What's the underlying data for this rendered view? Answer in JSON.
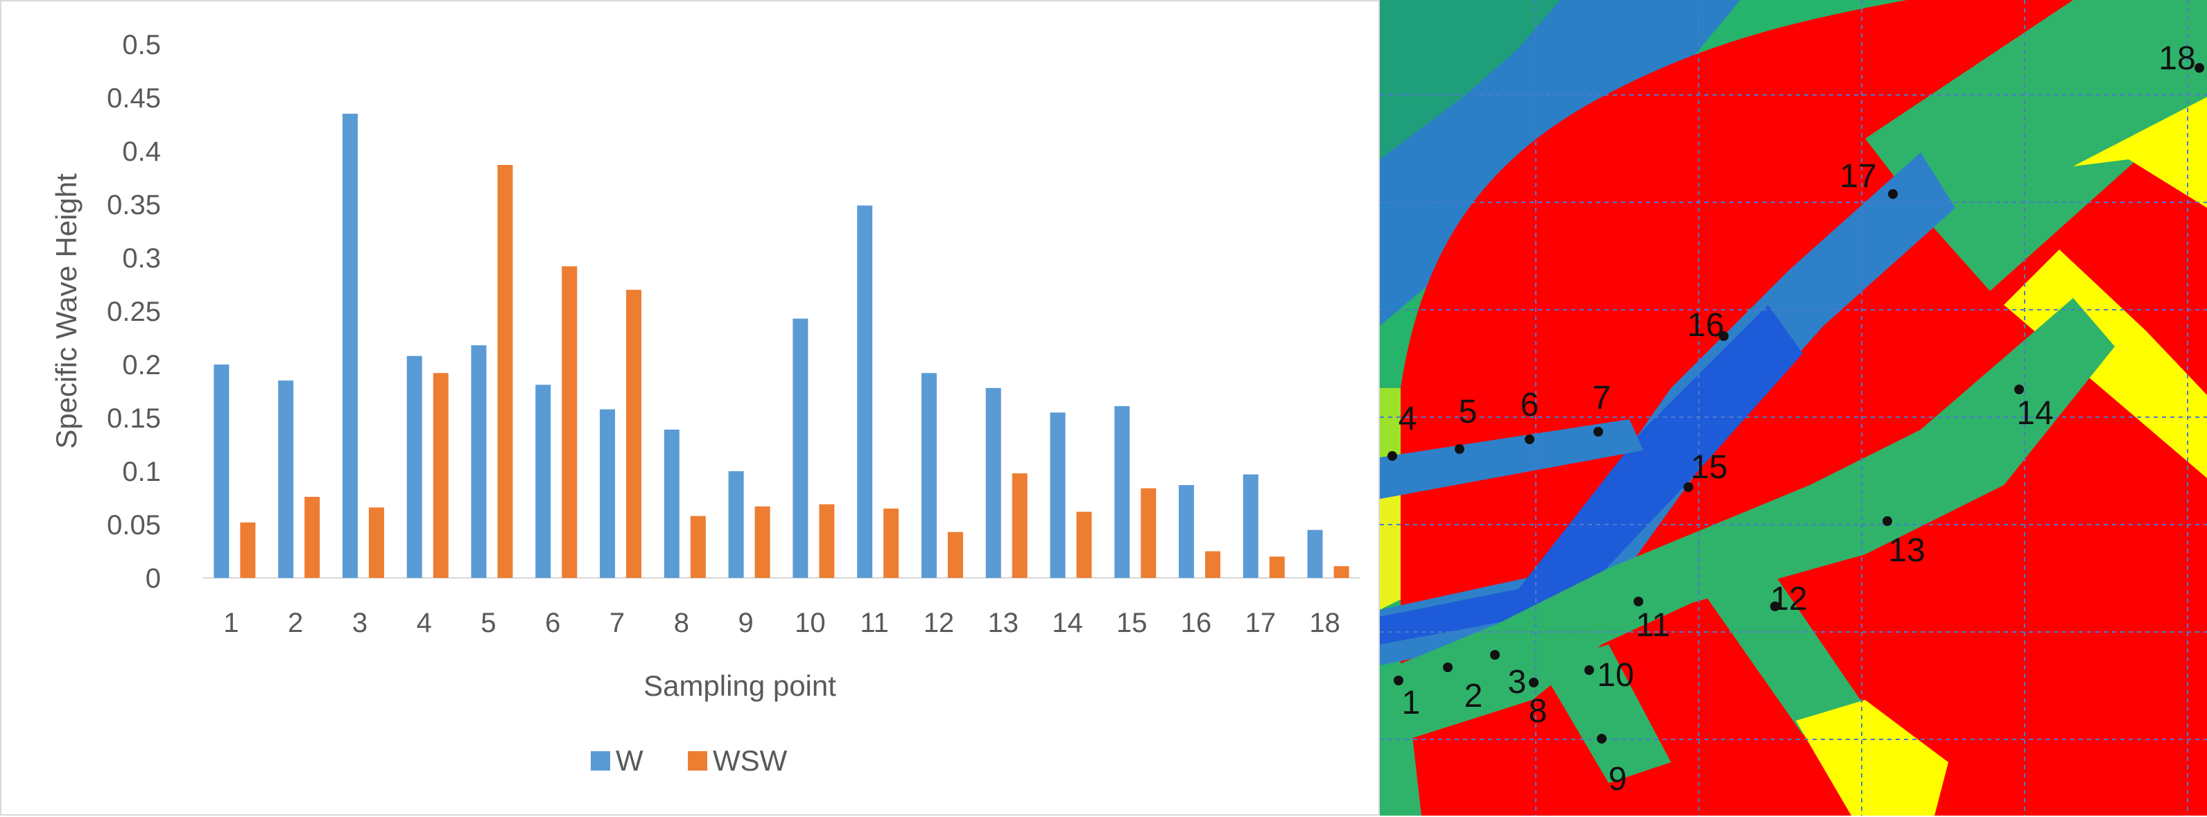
{
  "chart_data": {
    "type": "bar",
    "title": "",
    "xlabel": "Sampling point",
    "ylabel": "Specific Wave Height",
    "ylim": [
      0,
      0.5
    ],
    "yticks": [
      "0",
      "0.05",
      "0.1",
      "0.15",
      "0.2",
      "0.25",
      "0.3",
      "0.35",
      "0.4",
      "0.45",
      "0.5"
    ],
    "categories": [
      "1",
      "2",
      "3",
      "4",
      "5",
      "6",
      "7",
      "8",
      "9",
      "10",
      "11",
      "12",
      "13",
      "14",
      "15",
      "16",
      "17",
      "18"
    ],
    "series": [
      {
        "name": "W",
        "color": "#5b9bd5",
        "values": [
          0.2,
          0.185,
          0.435,
          0.208,
          0.218,
          0.181,
          0.158,
          0.139,
          0.1,
          0.243,
          0.349,
          0.192,
          0.178,
          0.155,
          0.161,
          0.087,
          0.097,
          0.045
        ]
      },
      {
        "name": "WSW",
        "color": "#ed7d31",
        "values": [
          0.052,
          0.076,
          0.066,
          0.192,
          0.387,
          0.292,
          0.27,
          0.058,
          0.067,
          0.069,
          0.065,
          0.043,
          0.098,
          0.062,
          0.084,
          0.025,
          0.02,
          0.011
        ]
      }
    ],
    "legend_position": "bottom-center",
    "grid": false
  },
  "map": {
    "colors": {
      "red": "#ff0000",
      "green": "#2fb36b",
      "blue": "#1e5bd8",
      "light_blue": "#2e80c9",
      "yellow": "#ffff00",
      "lime": "#9be22a",
      "grid": "#4a7bd0"
    },
    "points": [
      "1",
      "2",
      "3",
      "4",
      "5",
      "6",
      "7",
      "8",
      "9",
      "10",
      "11",
      "12",
      "13",
      "14",
      "15",
      "16",
      "17",
      "18"
    ]
  }
}
